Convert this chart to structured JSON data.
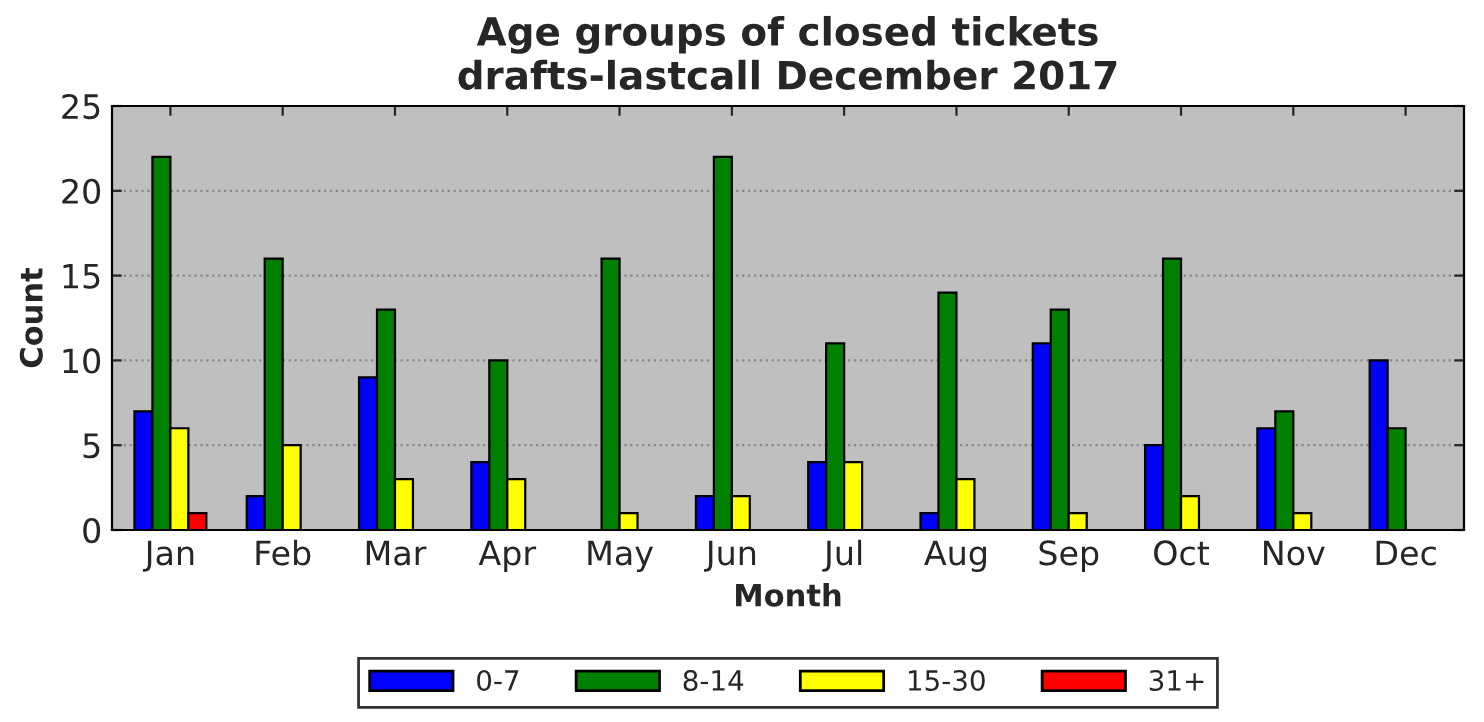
{
  "chart_data": {
    "type": "bar",
    "title": "Age groups of closed tickets\ndrafts-lastcall December 2017",
    "xlabel": "Month",
    "ylabel": "Count",
    "categories": [
      "Jan",
      "Feb",
      "Mar",
      "Apr",
      "May",
      "Jun",
      "Jul",
      "Aug",
      "Sep",
      "Oct",
      "Nov",
      "Dec"
    ],
    "series": [
      {
        "name": "0-7",
        "color": "#0000ff",
        "values": [
          7,
          2,
          9,
          4,
          0,
          2,
          4,
          1,
          11,
          5,
          6,
          10
        ]
      },
      {
        "name": "8-14",
        "color": "#008000",
        "values": [
          22,
          16,
          13,
          10,
          16,
          22,
          11,
          14,
          13,
          16,
          7,
          6
        ]
      },
      {
        "name": "15-30",
        "color": "#ffff00",
        "values": [
          6,
          5,
          3,
          3,
          1,
          2,
          4,
          3,
          1,
          2,
          1,
          0
        ]
      },
      {
        "name": "31+",
        "color": "#ff0000",
        "values": [
          1,
          0,
          0,
          0,
          0,
          0,
          0,
          0,
          0,
          0,
          0,
          0
        ]
      }
    ],
    "ylim": [
      0,
      25
    ],
    "yticks": [
      0,
      5,
      10,
      15,
      20,
      25
    ],
    "grid": "y",
    "legend": "bottom"
  }
}
